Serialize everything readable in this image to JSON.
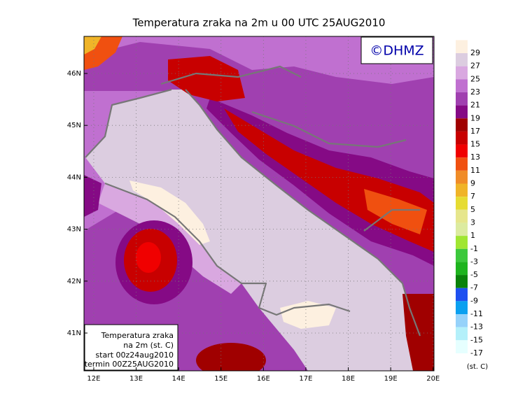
{
  "title": "Temperatura zraka na 2m u 00 UTC 25AUG2010",
  "logo": "©DHMZ",
  "lon_ticks": [
    {
      "value": 12,
      "label": "12E"
    },
    {
      "value": 13,
      "label": "13E"
    },
    {
      "value": 14,
      "label": "14E"
    },
    {
      "value": 15,
      "label": "15E"
    },
    {
      "value": 16,
      "label": "16E"
    },
    {
      "value": 17,
      "label": "17E"
    },
    {
      "value": 18,
      "label": "18E"
    },
    {
      "value": 19,
      "label": "19E"
    },
    {
      "value": 20,
      "label": "20E"
    }
  ],
  "lat_ticks": [
    {
      "value": 41,
      "label": "41N"
    },
    {
      "value": 42,
      "label": "42N"
    },
    {
      "value": 43,
      "label": "43N"
    },
    {
      "value": 44,
      "label": "44N"
    },
    {
      "value": 45,
      "label": "45N"
    },
    {
      "value": 46,
      "label": "46N"
    }
  ],
  "legend": {
    "levels": [
      29,
      27,
      25,
      23,
      21,
      19,
      17,
      15,
      13,
      11,
      9,
      7,
      5,
      3,
      1,
      -1,
      -3,
      -5,
      -7,
      -9,
      -11,
      -13,
      -15,
      -17
    ],
    "colors": [
      "#fdf0e0",
      "#dccde0",
      "#d9a8e0",
      "#c070d0",
      "#a040b0",
      "#850a85",
      "#a00000",
      "#c80000",
      "#f00000",
      "#f05010",
      "#f08c28",
      "#f0b428",
      "#e6dc32",
      "#e6e68c",
      "#dceba0",
      "#a0e632",
      "#3cc83c",
      "#1eb41e",
      "#0a820a",
      "#1e50f0",
      "#0aa0f0",
      "#96d2fa",
      "#b4f0fa",
      "#e6ffff"
    ],
    "unit": "(st. C)"
  },
  "info_box": [
    "Temperatura zraka",
    "na 2m (st. C)",
    "start 00z24aug2010",
    "termin 00Z25AUG2010"
  ]
}
